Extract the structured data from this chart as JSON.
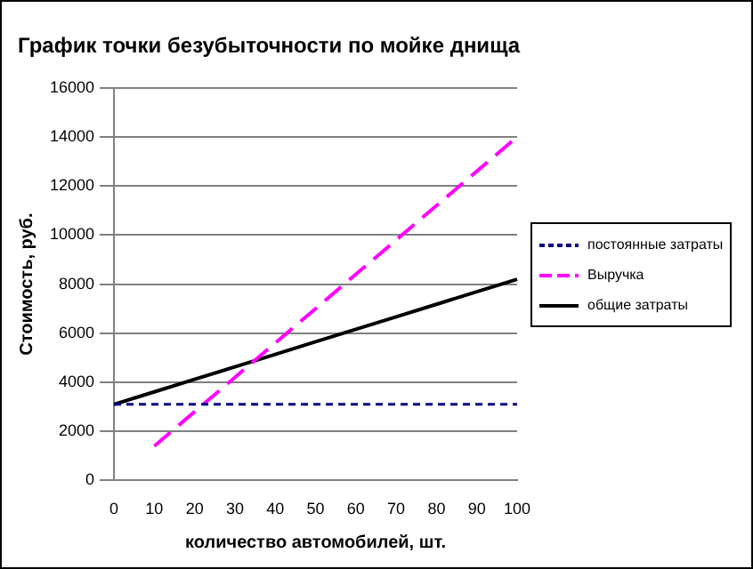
{
  "chart_data": {
    "type": "line",
    "title": "График точки безубыточности по мойке днища",
    "xlabel": "количество автомобилей, шт.",
    "ylabel": "Стоимость, руб.",
    "categories": [
      "0",
      "10",
      "20",
      "30",
      "40",
      "50",
      "60",
      "70",
      "80",
      "90",
      "100"
    ],
    "series": [
      {
        "name": "постоянные затраты",
        "color": "#000080",
        "line_style": "dashed",
        "values": [
          3100,
          3100,
          3100,
          3100,
          3100,
          3100,
          3100,
          3100,
          3100,
          3100,
          3100
        ]
      },
      {
        "name": "Выручка",
        "color": "#ff00ff",
        "line_style": "dashed",
        "values": [
          null,
          1400,
          2800,
          4200,
          5600,
          7000,
          8400,
          9800,
          11200,
          12600,
          14000
        ]
      },
      {
        "name": "общие затраты",
        "color": "#000000",
        "line_style": "solid",
        "values": [
          3100,
          3610,
          4120,
          4630,
          5140,
          5650,
          6160,
          6670,
          7180,
          7690,
          8200
        ]
      }
    ],
    "ylim": [
      0,
      16000
    ],
    "yticks": [
      0,
      2000,
      4000,
      6000,
      8000,
      10000,
      12000,
      14000,
      16000
    ],
    "grid": "y",
    "legend": "right",
    "marker": "none"
  }
}
